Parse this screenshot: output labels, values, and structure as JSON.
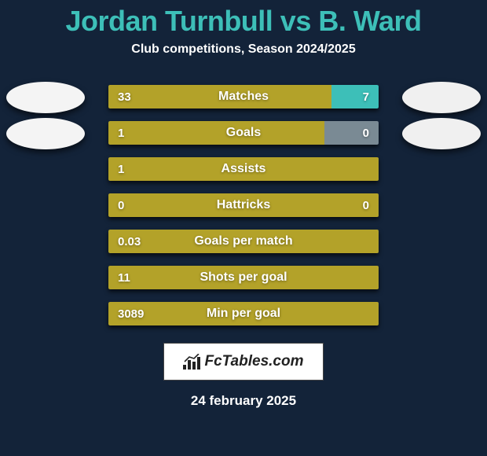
{
  "title": "Jordan Turnbull vs B. Ward",
  "subtitle": "Club competitions, Season 2024/2025",
  "date": "24 february 2025",
  "colors": {
    "p1": "#b3a229",
    "p2": "#3dbfb8",
    "background": "#132339",
    "disc_p1": "#f4f4f4",
    "disc_p2": "#f0f0f0",
    "text": "#ffffff"
  },
  "logo_text": "FcTables.com",
  "rows": [
    {
      "label": "Matches",
      "v1": "33",
      "v2": "7",
      "w1": 82.5,
      "w2": 17.5,
      "disc": true
    },
    {
      "label": "Goals",
      "v1": "1",
      "v2": "0",
      "w1": 80,
      "w2": 20,
      "right_grey": true,
      "disc": true
    },
    {
      "label": "Assists",
      "v1": "1",
      "v2": "",
      "w1": 100,
      "w2": 0,
      "disc": false
    },
    {
      "label": "Hattricks",
      "v1": "0",
      "v2": "0",
      "w1": 100,
      "w2": 0,
      "disc": false,
      "left_grey": false
    },
    {
      "label": "Goals per match",
      "v1": "0.03",
      "v2": "",
      "w1": 100,
      "w2": 0,
      "disc": false
    },
    {
      "label": "Shots per goal",
      "v1": "11",
      "v2": "",
      "w1": 100,
      "w2": 0,
      "disc": false
    },
    {
      "label": "Min per goal",
      "v1": "3089",
      "v2": "",
      "w1": 100,
      "w2": 0,
      "disc": false
    }
  ]
}
